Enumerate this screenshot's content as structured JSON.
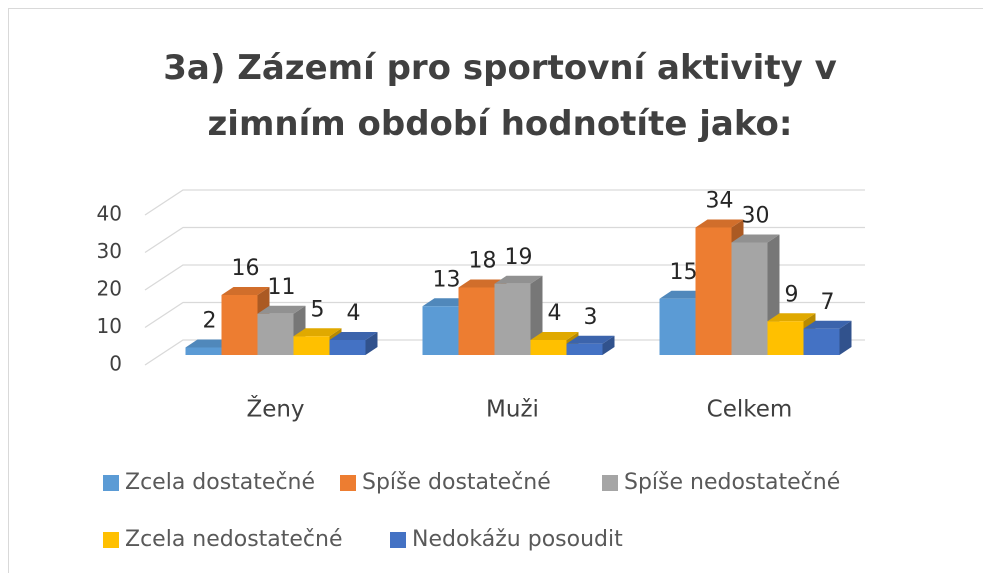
{
  "chart_data": {
    "type": "bar3d",
    "title": "3a) Zázemí pro sportovní aktivity v zimním období hodnotíte jako:",
    "categories": [
      "Ženy",
      "Muži",
      "Celkem"
    ],
    "series": [
      {
        "name": "Zcela dostatečné",
        "color": "#5b9bd5",
        "values": [
          2,
          13,
          15
        ]
      },
      {
        "name": "Spíše dostatečné",
        "color": "#ed7d31",
        "values": [
          16,
          18,
          34
        ]
      },
      {
        "name": "Spíše nedostatečné",
        "color": "#a5a5a5",
        "values": [
          11,
          19,
          30
        ]
      },
      {
        "name": "Zcela nedostatečné",
        "color": "#ffc000",
        "values": [
          5,
          4,
          9
        ]
      },
      {
        "name": "Nedokážu posoudit",
        "color": "#4472c4",
        "values": [
          4,
          3,
          7
        ]
      }
    ],
    "ylim": [
      0,
      40
    ],
    "yticks": [
      0,
      10,
      20,
      30,
      40
    ],
    "grid": true,
    "legend": "bottom"
  }
}
